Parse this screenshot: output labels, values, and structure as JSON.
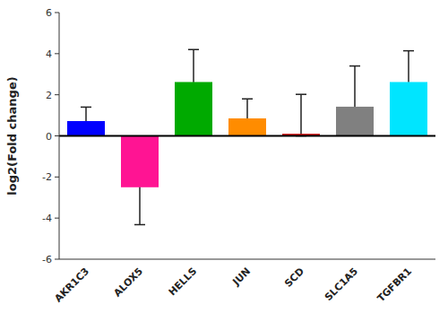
{
  "chart_data": {
    "type": "bar",
    "categories": [
      "AKR1C3",
      "ALOX5",
      "HELLS",
      "JUN",
      "SCD",
      "SLC1A5",
      "TGFBR1"
    ],
    "values": [
      0.72,
      -2.5,
      2.62,
      0.85,
      0.1,
      1.42,
      2.62
    ],
    "errors_upper": [
      0.68,
      1.82,
      1.58,
      0.95,
      1.92,
      1.98,
      1.52
    ],
    "errors_lower": [
      0.45,
      1.82,
      1.0,
      0.55,
      0.1,
      0.95,
      0.9
    ],
    "colors": [
      "#0000ff",
      "#ff1493",
      "#00aa00",
      "#ff8c00",
      "#cc0000",
      "#808080",
      "#00e5ff"
    ],
    "ylabel": "log2(Fold change)",
    "ylim": [
      -6,
      6
    ],
    "yticks": [
      -6,
      -4,
      -2,
      0,
      2,
      4,
      6
    ],
    "grid": false
  }
}
